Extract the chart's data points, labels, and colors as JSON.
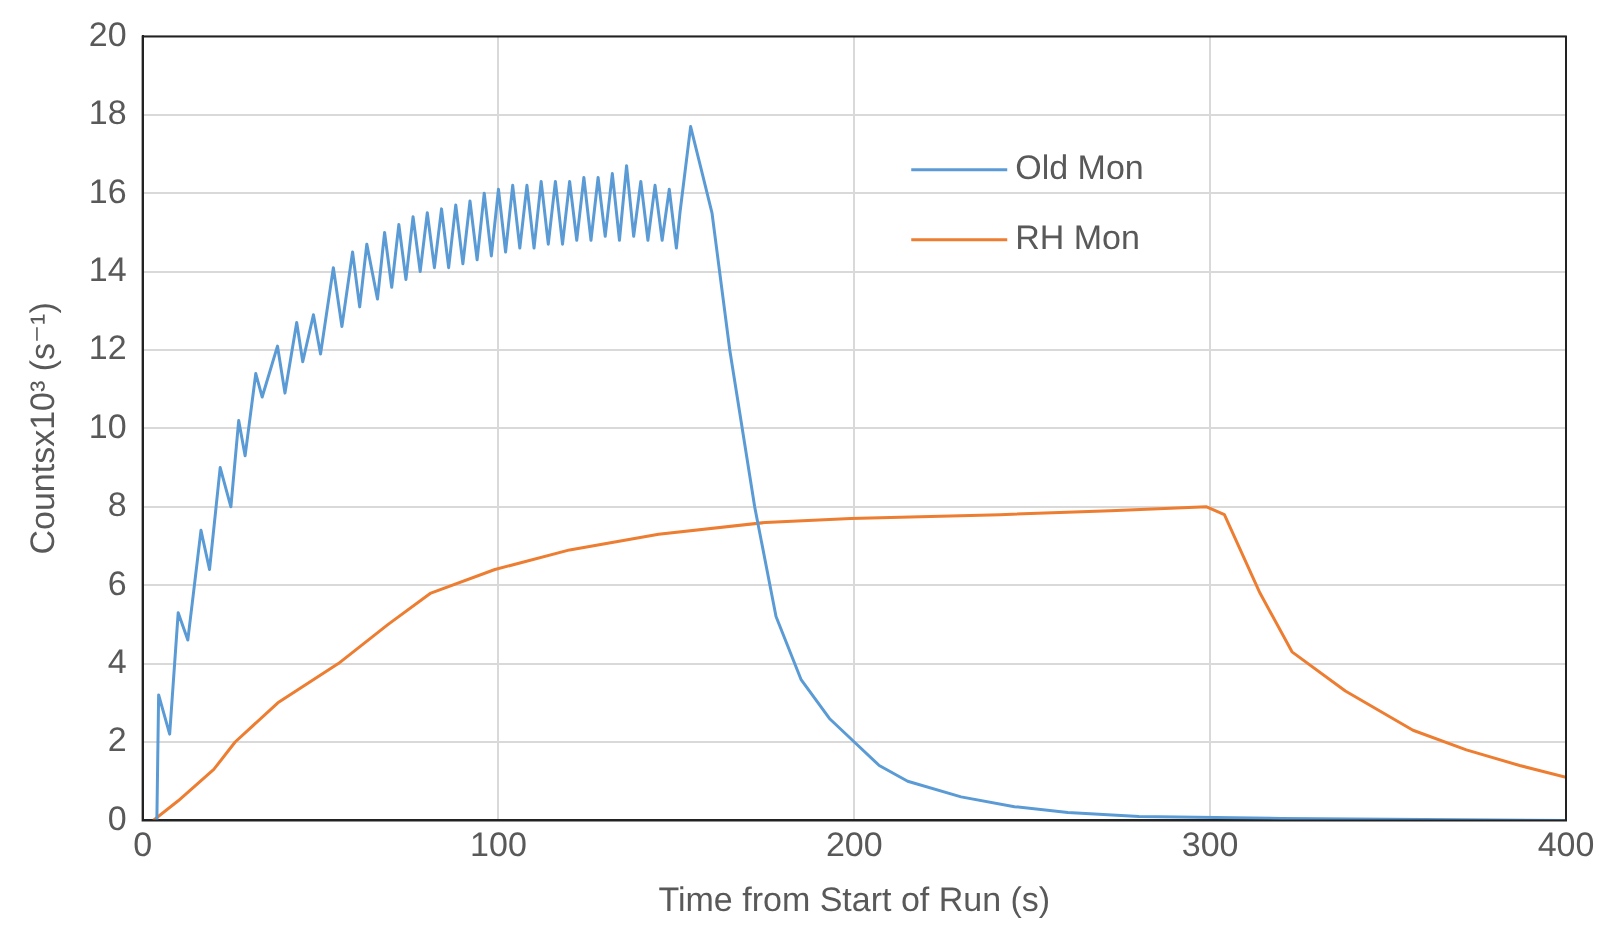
{
  "chart_data": {
    "type": "line",
    "xlabel": "Time from Start of Run (s)",
    "ylabel": "Countsx10³ (s⁻¹)",
    "xlim": [
      0,
      400
    ],
    "xticks": [
      0,
      100,
      200,
      300,
      400
    ],
    "ylim": [
      0,
      20
    ],
    "yticks": [
      0,
      2,
      4,
      6,
      8,
      10,
      12,
      14,
      16,
      18,
      20
    ],
    "grid": true,
    "legend": "top right",
    "marker": "none",
    "line_style": "solid",
    "series": [
      {
        "name": "Old Mon",
        "color": "#5b9bd5",
        "x": [
          4,
          4.5,
          7.6,
          10,
          12.7,
          16.4,
          18.8,
          21.8,
          24.8,
          27,
          28.8,
          31.8,
          33.6,
          37.9,
          40,
          43.3,
          45,
          48,
          50,
          53.6,
          56,
          59,
          61,
          63,
          66,
          68,
          70,
          72,
          74,
          76,
          78,
          80,
          82,
          84,
          86,
          88,
          90,
          92,
          94,
          96,
          98,
          100,
          102,
          104,
          106,
          108,
          110,
          112,
          114,
          116,
          118,
          120,
          122,
          124,
          126,
          128,
          130,
          132,
          134,
          136,
          138,
          140,
          142,
          144,
          146,
          148,
          150,
          151,
          154,
          157,
          160,
          165,
          172,
          178,
          185,
          193,
          200,
          207,
          215,
          230,
          245,
          260,
          280,
          320,
          360,
          400
        ],
        "values": [
          0,
          3.2,
          2.2,
          5.3,
          4.6,
          7.4,
          6.4,
          9,
          8,
          10.2,
          9.3,
          11.4,
          10.8,
          12.1,
          10.9,
          12.7,
          11.7,
          12.9,
          11.9,
          14.1,
          12.6,
          14.5,
          13.1,
          14.7,
          13.3,
          15,
          13.6,
          15.2,
          13.8,
          15.4,
          14,
          15.5,
          14.1,
          15.6,
          14.1,
          15.7,
          14.2,
          15.8,
          14.3,
          16,
          14.4,
          16.1,
          14.5,
          16.2,
          14.6,
          16.2,
          14.6,
          16.3,
          14.7,
          16.3,
          14.7,
          16.3,
          14.8,
          16.4,
          14.8,
          16.4,
          14.9,
          16.5,
          14.8,
          16.7,
          14.9,
          16.3,
          14.8,
          16.2,
          14.8,
          16.1,
          14.6,
          15.5,
          17.7,
          16.6,
          15.5,
          12,
          8,
          5.2,
          3.6,
          2.6,
          2,
          1.4,
          1,
          0.6,
          0.35,
          0.2,
          0.1,
          0.05,
          0.02,
          0
        ]
      },
      {
        "name": "RH Mon",
        "color": "#ed7d31",
        "x": [
          3,
          10,
          20,
          26,
          38,
          55,
          69,
          81,
          99,
          120,
          145,
          175,
          199,
          241,
          272,
          299,
          304,
          314,
          323,
          338,
          357,
          372,
          387,
          400
        ],
        "values": [
          0,
          0.5,
          1.3,
          2,
          3,
          4,
          5,
          5.8,
          6.4,
          6.9,
          7.3,
          7.6,
          7.7,
          7.8,
          7.9,
          8,
          7.8,
          5.8,
          4.3,
          3.3,
          2.3,
          1.8,
          1.4,
          1.1
        ]
      }
    ]
  }
}
